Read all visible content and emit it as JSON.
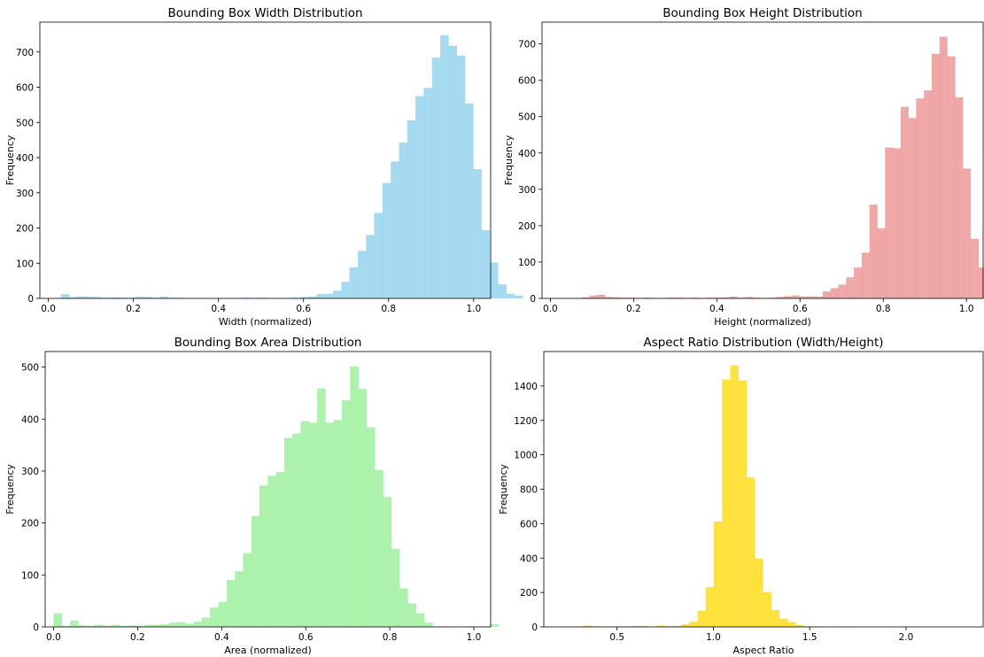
{
  "chart_data": [
    {
      "type": "histogram",
      "title": "Bounding Box Width Distribution",
      "xlabel": "Width (normalized)",
      "ylabel": "Frequency",
      "color": "#87CEEB",
      "xlim": [
        -0.02,
        1.04
      ],
      "ylim": [
        0,
        785
      ],
      "xticks": [
        0.0,
        0.2,
        0.4,
        0.6,
        0.8,
        1.0
      ],
      "xtick_labels": [
        "0.0",
        "0.2",
        "0.4",
        "0.6",
        "0.8",
        "1.0"
      ],
      "yticks": [
        0,
        100,
        200,
        300,
        400,
        500,
        600,
        700
      ],
      "ytick_labels": [
        "0",
        "100",
        "200",
        "300",
        "400",
        "500",
        "600",
        "700"
      ],
      "bins": {
        "start": 0.029,
        "width": 0.0194
      },
      "values": [
        12,
        4,
        6,
        5,
        4,
        2,
        3,
        2,
        2,
        5,
        4,
        2,
        5,
        2,
        2,
        1,
        1,
        0,
        0,
        0,
        1,
        1,
        2,
        1,
        2,
        1,
        0,
        1,
        2,
        4,
        5,
        12,
        13,
        22,
        47,
        88,
        135,
        180,
        243,
        328,
        389,
        443,
        506,
        575,
        598,
        684,
        748,
        718,
        690,
        554,
        367,
        194,
        102,
        40,
        13,
        8
      ]
    },
    {
      "type": "histogram",
      "title": "Bounding Box Height Distribution",
      "xlabel": "Height (normalized)",
      "ylabel": "Frequency",
      "color": "#EA8A8A",
      "xlim": [
        -0.02,
        1.04
      ],
      "ylim": [
        0,
        760
      ],
      "xticks": [
        0.0,
        0.2,
        0.4,
        0.6,
        0.8,
        1.0
      ],
      "xtick_labels": [
        "0.0",
        "0.2",
        "0.4",
        "0.6",
        "0.8",
        "1.0"
      ],
      "yticks": [
        0,
        100,
        200,
        300,
        400,
        500,
        600,
        700
      ],
      "ytick_labels": [
        "0",
        "100",
        "200",
        "300",
        "400",
        "500",
        "600",
        "700"
      ],
      "bins": {
        "start": 0.075,
        "width": 0.0187
      },
      "values": [
        3,
        8,
        10,
        4,
        3,
        2,
        2,
        1,
        2,
        1,
        1,
        2,
        2,
        1,
        2,
        1,
        2,
        2,
        3,
        5,
        2,
        4,
        2,
        1,
        2,
        4,
        6,
        8,
        5,
        6,
        5,
        19,
        28,
        38,
        58,
        85,
        126,
        258,
        193,
        415,
        413,
        527,
        496,
        550,
        572,
        673,
        720,
        666,
        553,
        357,
        164,
        85,
        22,
        9,
        2,
        2,
        8
      ]
    },
    {
      "type": "histogram",
      "title": "Bounding Box Area Distribution",
      "xlabel": "Area (normalized)",
      "ylabel": "Frequency",
      "color": "#90EE90",
      "xlim": [
        -0.02,
        1.04
      ],
      "ylim": [
        0,
        530
      ],
      "xticks": [
        0.0,
        0.2,
        0.4,
        0.6,
        0.8,
        1.0
      ],
      "xtick_labels": [
        "0.0",
        "0.2",
        "0.4",
        "0.6",
        "0.8",
        "1.0"
      ],
      "yticks": [
        0,
        100,
        200,
        300,
        400,
        500
      ],
      "ytick_labels": [
        "0",
        "100",
        "200",
        "300",
        "400",
        "500"
      ],
      "bins": {
        "start": 0.0,
        "width": 0.0196
      },
      "values": [
        26,
        2,
        12,
        3,
        2,
        4,
        2,
        4,
        2,
        3,
        2,
        4,
        4,
        5,
        8,
        9,
        6,
        10,
        18,
        37,
        48,
        90,
        107,
        142,
        213,
        272,
        291,
        298,
        364,
        372,
        396,
        393,
        459,
        393,
        398,
        436,
        501,
        458,
        384,
        302,
        250,
        150,
        74,
        45,
        26,
        8,
        1,
        1,
        0,
        0,
        1,
        1,
        1,
        5
      ]
    },
    {
      "type": "histogram",
      "title": "Aspect Ratio Distribution (Width/Height)",
      "xlabel": "Aspect Ratio",
      "ylabel": "Frequency",
      "color": "#FFD700",
      "xlim": [
        0.12,
        2.4
      ],
      "ylim": [
        0,
        1600
      ],
      "xticks": [
        0.5,
        1.0,
        1.5,
        2.0
      ],
      "xtick_labels": [
        "0.5",
        "1.0",
        "1.5",
        "2.0"
      ],
      "yticks": [
        0,
        200,
        400,
        600,
        800,
        1000,
        1200,
        1400
      ],
      "ytick_labels": [
        "0",
        "200",
        "400",
        "600",
        "800",
        "1000",
        "1200",
        "1400"
      ],
      "bins": {
        "start": 0.195,
        "width": 0.0425
      },
      "values": [
        1,
        2,
        3,
        8,
        4,
        2,
        2,
        4,
        3,
        5,
        6,
        3,
        8,
        5,
        6,
        15,
        30,
        95,
        231,
        612,
        1438,
        1518,
        1432,
        868,
        398,
        202,
        98,
        48,
        28,
        10,
        4,
        2,
        1,
        1,
        1,
        2,
        1,
        1,
        1,
        1,
        0,
        1,
        1,
        1,
        1,
        1,
        1,
        1,
        1,
        1,
        0
      ]
    }
  ]
}
